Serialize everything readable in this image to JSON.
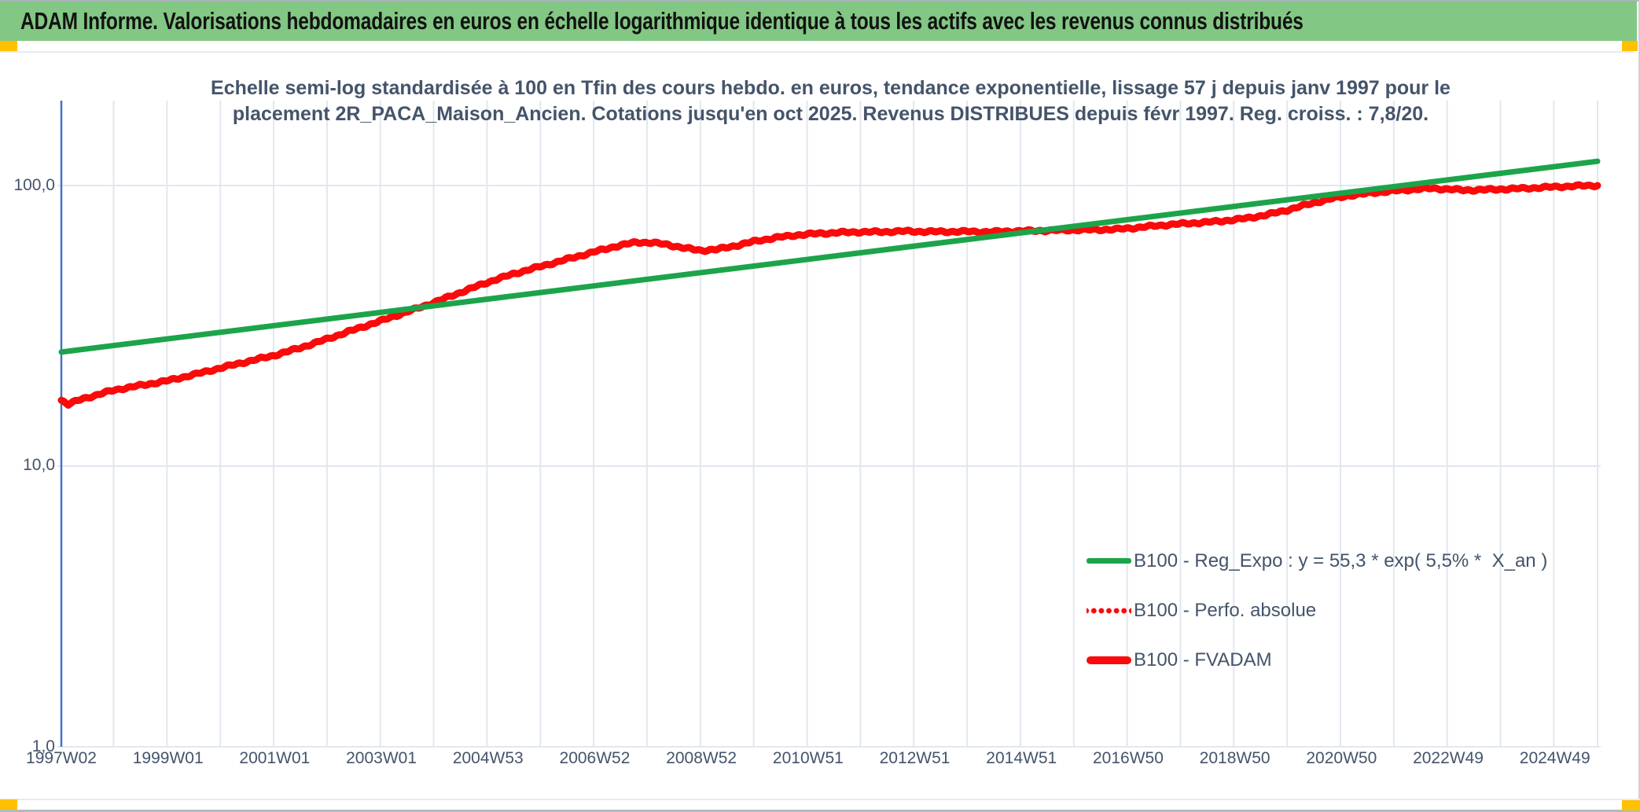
{
  "banner": {
    "title": "ADAM Informe. Valorisations hebdomadaires en euros en échelle logarithmique identique à tous les actifs avec les revenus connus distribués"
  },
  "legend": {
    "entries": [
      {
        "label": "B100 - Reg_Expo : y = 55,3 * exp( 5,5% *  X_an )",
        "color": "#1CA44A",
        "style": "solid"
      },
      {
        "label": "B100 - Perfo. absolue",
        "color": "#FA0A0A",
        "style": "dotted"
      },
      {
        "label": "B100 - FVADAM",
        "color": "#FA0A0A",
        "style": "solid-thick"
      }
    ]
  },
  "colors": {
    "banner_green": "#82C783",
    "corner_yellow": "#FFC000",
    "trend_green": "#1CA44A",
    "series_red": "#FA0A0A",
    "axis_blue": "#4472C4",
    "text_navy": "#44546A",
    "gridline": "#E2E7EF"
  },
  "chart_data": {
    "type": "line",
    "title_lines": [
      "Echelle semi-log standardisée à 100 en Tfin des cours hebdo. en euros, tendance exponentielle, lissage 57 j depuis janv 1997 pour le",
      "placement 2R_PACA_Maison_Ancien. Cotations jusqu'en oct 2025. Revenus DISTRIBUES depuis févr 1997. Reg. croiss. : 7,8/20."
    ],
    "y_axis": {
      "scale": "log",
      "min": 1,
      "max": 200,
      "tick_labels": [
        "100,0",
        "10,0",
        "1,0"
      ],
      "tick_values": [
        100,
        10,
        1
      ],
      "grid": true
    },
    "x_axis": {
      "start_year": 1997.02,
      "end_year": 2025.82,
      "label_interval_years": 2,
      "tick_labels": [
        "1997W02",
        "1999W01",
        "2001W01",
        "2003W01",
        "2004W53",
        "2006W52",
        "2008W52",
        "2010W51",
        "2012W51",
        "2014W51",
        "2016W50",
        "2018W50",
        "2020W50",
        "2022W49",
        "2024W49"
      ],
      "grid": true
    },
    "series": [
      {
        "name": "B100 - Reg_Expo",
        "kind": "exponential_trend",
        "formula": "y = 55,3 * exp( 5,5% * X_an )",
        "growth_rate_pct_per_year": 5.5,
        "color": "#1CA44A",
        "style": "solid",
        "points": [
          [
            1997.02,
            25.5
          ],
          [
            2025.82,
            122.0
          ]
        ]
      },
      {
        "name": "B100 - Perfo. absolue",
        "color": "#FA0A0A",
        "style": "dotted",
        "coincides_with": "B100 - FVADAM"
      },
      {
        "name": "B100 - FVADAM",
        "color": "#FA0A0A",
        "style": "solid",
        "final_value": 100.0,
        "points": [
          [
            1997.02,
            17.2
          ],
          [
            1997.15,
            16.6
          ],
          [
            1997.4,
            17.3
          ],
          [
            1997.7,
            17.9
          ],
          [
            1998.0,
            18.6
          ],
          [
            1998.5,
            19.4
          ],
          [
            1999.0,
            20.2
          ],
          [
            1999.5,
            21.2
          ],
          [
            2000.0,
            22.3
          ],
          [
            2000.5,
            23.5
          ],
          [
            2001.0,
            24.8
          ],
          [
            2001.5,
            26.5
          ],
          [
            2002.0,
            28.4
          ],
          [
            2002.5,
            30.5
          ],
          [
            2003.0,
            32.8
          ],
          [
            2003.5,
            35.5
          ],
          [
            2004.0,
            38.4
          ],
          [
            2004.5,
            41.6
          ],
          [
            2005.0,
            45.0
          ],
          [
            2005.5,
            48.3
          ],
          [
            2006.0,
            51.5
          ],
          [
            2006.5,
            54.8
          ],
          [
            2007.0,
            58.0
          ],
          [
            2007.4,
            60.5
          ],
          [
            2007.8,
            62.6
          ],
          [
            2008.1,
            62.4
          ],
          [
            2008.4,
            61.5
          ],
          [
            2008.7,
            60.0
          ],
          [
            2009.0,
            58.9
          ],
          [
            2009.3,
            59.3
          ],
          [
            2009.7,
            61.2
          ],
          [
            2010.0,
            63.0
          ],
          [
            2010.4,
            64.9
          ],
          [
            2010.8,
            66.5
          ],
          [
            2011.2,
            67.6
          ],
          [
            2011.6,
            68.2
          ],
          [
            2012.0,
            68.4
          ],
          [
            2012.4,
            68.2
          ],
          [
            2012.8,
            68.5
          ],
          [
            2013.2,
            68.4
          ],
          [
            2013.6,
            68.6
          ],
          [
            2014.0,
            68.8
          ],
          [
            2014.4,
            68.5
          ],
          [
            2014.8,
            68.6
          ],
          [
            2015.2,
            68.7
          ],
          [
            2015.6,
            69.0
          ],
          [
            2016.0,
            69.5
          ],
          [
            2016.4,
            69.8
          ],
          [
            2016.8,
            70.0
          ],
          [
            2017.2,
            70.8
          ],
          [
            2017.6,
            71.8
          ],
          [
            2018.0,
            72.8
          ],
          [
            2018.4,
            73.8
          ],
          [
            2018.8,
            75.0
          ],
          [
            2019.2,
            76.5
          ],
          [
            2019.6,
            78.5
          ],
          [
            2020.0,
            81.5
          ],
          [
            2020.4,
            85.5
          ],
          [
            2020.8,
            89.5
          ],
          [
            2021.2,
            92.5
          ],
          [
            2021.6,
            94.5
          ],
          [
            2022.0,
            95.8
          ],
          [
            2022.4,
            96.8
          ],
          [
            2022.7,
            97.4
          ],
          [
            2023.0,
            96.8
          ],
          [
            2023.3,
            96.2
          ],
          [
            2023.6,
            96.6
          ],
          [
            2024.0,
            97.3
          ],
          [
            2024.4,
            97.8
          ],
          [
            2024.8,
            98.3
          ],
          [
            2025.2,
            98.9
          ],
          [
            2025.5,
            99.4
          ],
          [
            2025.82,
            100.0
          ]
        ]
      }
    ]
  }
}
